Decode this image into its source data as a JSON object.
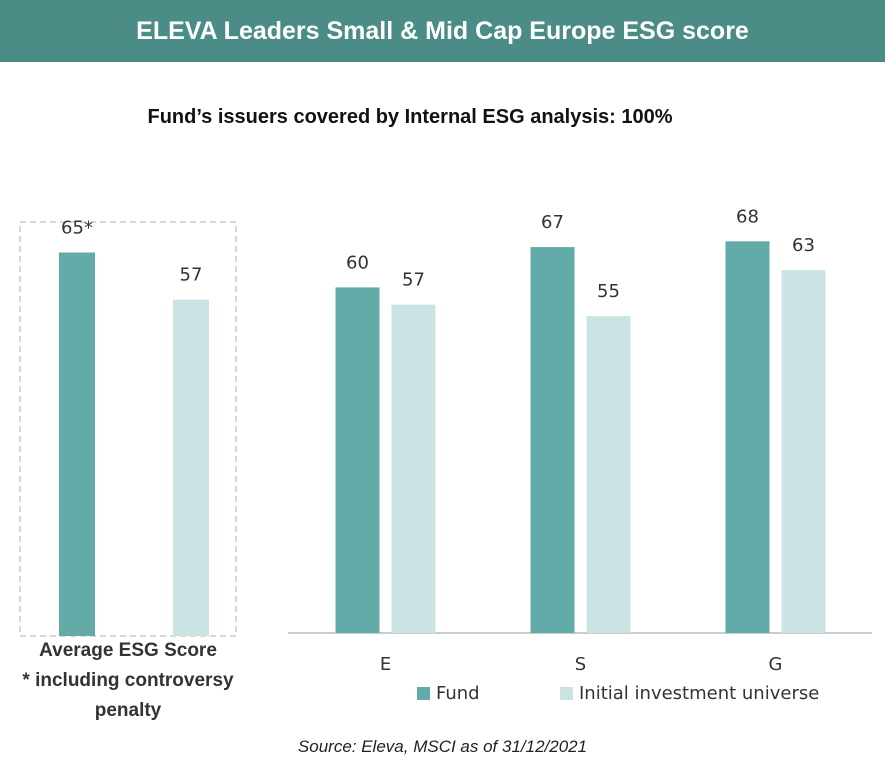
{
  "header": {
    "title": "ELEVA Leaders Small & Mid Cap Europe ESG score"
  },
  "subtitle": "Fund’s issuers covered by Internal ESG analysis: 100%",
  "chart_data": [
    {
      "type": "bar",
      "categories": [
        "Average ESG Score"
      ],
      "note": "* including controversy penalty",
      "series": [
        {
          "color": "#62aba8",
          "values": [
            65
          ],
          "value_labels": [
            "65*"
          ]
        },
        {
          "color": "#c9e4e3",
          "values": [
            57
          ]
        }
      ],
      "ylim": [
        0,
        100
      ]
    },
    {
      "type": "bar",
      "categories": [
        "E",
        "S",
        "G"
      ],
      "series": [
        {
          "name": "Fund",
          "color": "#62aba8",
          "values": [
            60,
            67,
            68
          ]
        },
        {
          "name": "Initial investment universe",
          "color": "#c9e4e3",
          "values": [
            57,
            55,
            63
          ]
        }
      ],
      "ylim": [
        0,
        100
      ]
    }
  ],
  "source": "Source: Eleva, MSCI as of 31/12/2021"
}
